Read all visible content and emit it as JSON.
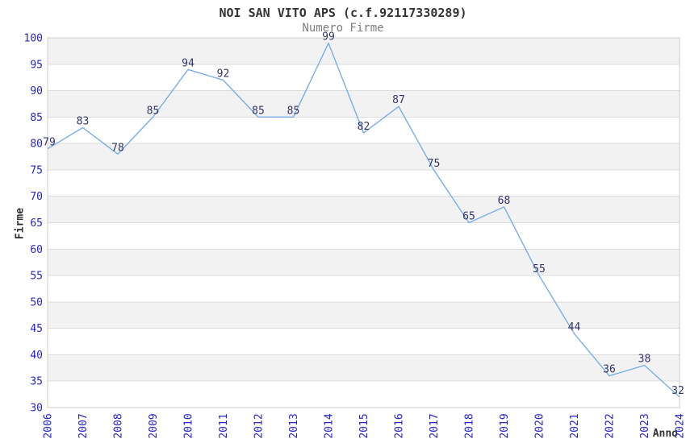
{
  "chart_data": {
    "type": "line",
    "title": "NOI SAN VITO APS (c.f.92117330289)",
    "subtitle": "Numero Firme",
    "xlabel": "Anno",
    "ylabel": "Firme",
    "categories": [
      "2006",
      "2007",
      "2008",
      "2009",
      "2010",
      "2011",
      "2012",
      "2013",
      "2014",
      "2015",
      "2016",
      "2017",
      "2018",
      "2019",
      "2020",
      "2021",
      "2022",
      "2023",
      "2024"
    ],
    "values": [
      79,
      83,
      78,
      85,
      94,
      92,
      85,
      85,
      99,
      82,
      87,
      75,
      65,
      68,
      55,
      44,
      36,
      38,
      32
    ],
    "ylim": [
      30,
      100
    ],
    "ytick_step": 5,
    "grid": true,
    "legend": "none",
    "band_pattern": "alternating gray/white every 5 units, gray on 35-40, 45-50, 55-60, 65-70, 75-80, 85-90, 95-100",
    "colors": {
      "line": "#7aade6",
      "tick_label": "#2424cc",
      "value_label": "#333366",
      "band_gray": "#f2f2f2",
      "gridline": "#dcdcdc",
      "frame": "#cccccc",
      "title": "#333333",
      "subtitle": "#7d7d7d",
      "axis_title": "#333333"
    }
  }
}
